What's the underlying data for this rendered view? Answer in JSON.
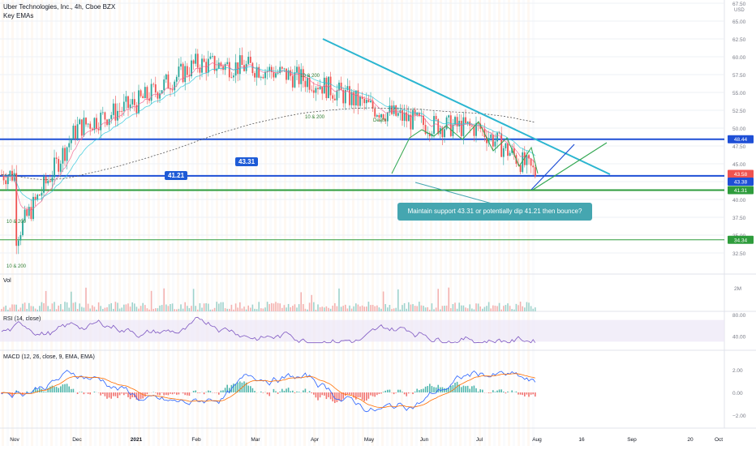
{
  "header": {
    "title": "Uber Technologies, Inc., 4h, Cboe BZX",
    "indicator": "Key EMAs",
    "currency": "USD"
  },
  "panes": {
    "vol_label": "Vol",
    "rsi_label": "RSI (14, close)",
    "macd_label": "MACD (12, 26, close, 9, EMA, EMA)"
  },
  "annotations": {
    "callout": "Maintain support 43.31 or potentially dip 41.21 then bounce?",
    "level_1": "43.31",
    "level_2": "41.21",
    "ema_labels": [
      "10 & 200",
      "10 & 200",
      "10 & 200",
      "10 & 200",
      "Death"
    ]
  },
  "colors": {
    "up": "#26a69a",
    "down": "#ef5350",
    "trendline": "#2bb5d0",
    "support": "#1e4fd6",
    "green_level": "#2e9c3c",
    "callout": "#45a6b0"
  },
  "chart_data": {
    "type": "candlestick",
    "title": "Uber Technologies, Inc., 4h, Cboe BZX",
    "x_ticks": [
      "Nov",
      "Dec",
      "2021",
      "Feb",
      "Mar",
      "Apr",
      "May",
      "Jun",
      "Jul",
      "Aug",
      "16",
      "Sep",
      "20",
      "Oct"
    ],
    "y_ticks": [
      32.5,
      35,
      37.5,
      40,
      42.5,
      45,
      47.5,
      50,
      52.5,
      55,
      57.5,
      60,
      62.5,
      65,
      67.5
    ],
    "y_tick_labels": [
      "32.50",
      "35.00",
      "37.50",
      "40.00",
      "42.50",
      "45.00",
      "47.50",
      "50.00",
      "52.50",
      "55.00",
      "57.50",
      "60.00",
      "62.50",
      "65.00",
      "67.50"
    ],
    "ylim": [
      30,
      67.5
    ],
    "price_labels": [
      "48.44",
      "43.58",
      "43.38",
      "41.31",
      "34.34"
    ],
    "horizontal_levels": [
      48.44,
      43.31,
      41.31,
      34.34
    ],
    "approx_close_path": [
      {
        "x": "Nov",
        "close": 34.5
      },
      {
        "x": "Dec",
        "close": 50.0
      },
      {
        "x": "2021",
        "close": 53.5
      },
      {
        "x": "Feb",
        "close": 59.0
      },
      {
        "x": "Mar",
        "close": 58.5
      },
      {
        "x": "Apr",
        "close": 56.5
      },
      {
        "x": "May",
        "close": 53.0
      },
      {
        "x": "Jun",
        "close": 50.5
      },
      {
        "x": "Jul",
        "close": 50.0
      },
      {
        "x": "Aug",
        "close": 43.5
      }
    ],
    "rsi": {
      "ylim": [
        20,
        80
      ],
      "ticks": [
        40,
        80
      ],
      "tick_labels": [
        "40.00",
        "80.00"
      ]
    },
    "macd": {
      "ylim": [
        -3,
        3
      ],
      "ticks": [
        -2,
        0,
        2
      ],
      "tick_labels": [
        "−2.00",
        "0.00",
        "2.00"
      ]
    },
    "vol": {
      "tick_labels": [
        "2M"
      ]
    }
  }
}
